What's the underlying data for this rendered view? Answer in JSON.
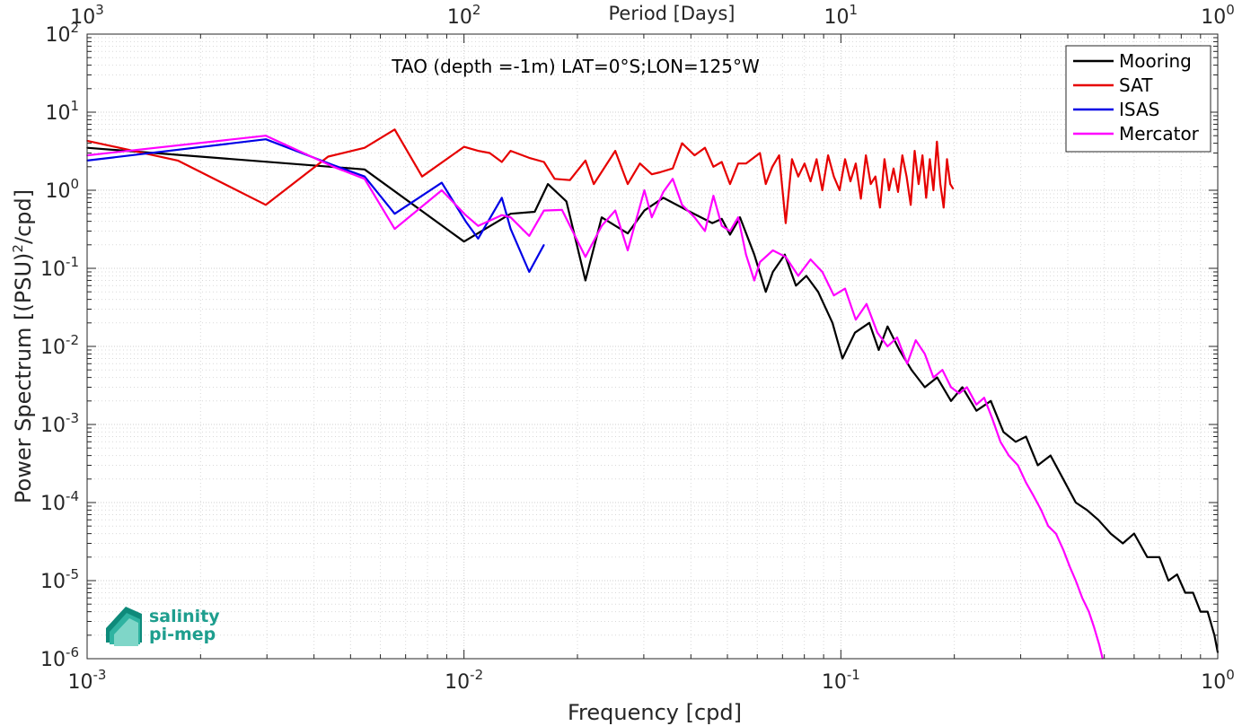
{
  "colors": {
    "mooring": "#000000",
    "sat": "#e60000",
    "isas": "#0000e6",
    "mercator": "#ff00ff",
    "logo_teal": "#1e9e8e"
  },
  "logo": {
    "line1": "salinity",
    "line2": "pi-mep",
    "icon": "salinity-waves-icon"
  },
  "chart_data": {
    "type": "line",
    "title": "TAO (depth =-1m) LAT=0°S;LON=125°W",
    "xlabel": "Frequency [cpd]",
    "ylabel": "Power Spectrum [(PSU)",
    "ylabel_sup": "2",
    "ylabel_suffix": "/cpd]",
    "top_xlabel": "Period [Days]",
    "x_scale": "log",
    "y_scale": "log",
    "xlim": [
      0.001,
      1
    ],
    "ylim": [
      1e-06,
      100
    ],
    "grid": true,
    "legend_position": "top-right",
    "x_ticks": [
      {
        "value": 0.001,
        "base": "10",
        "exp": "-3"
      },
      {
        "value": 0.01,
        "base": "10",
        "exp": "-2"
      },
      {
        "value": 0.1,
        "base": "10",
        "exp": "-1"
      },
      {
        "value": 1,
        "base": "10",
        "exp": "0"
      }
    ],
    "y_ticks": [
      {
        "value": 1e-06,
        "base": "10",
        "exp": "-6"
      },
      {
        "value": 1e-05,
        "base": "10",
        "exp": "-5"
      },
      {
        "value": 0.0001,
        "base": "10",
        "exp": "-4"
      },
      {
        "value": 0.001,
        "base": "10",
        "exp": "-3"
      },
      {
        "value": 0.01,
        "base": "10",
        "exp": "-2"
      },
      {
        "value": 0.1,
        "base": "10",
        "exp": "-1"
      },
      {
        "value": 1,
        "base": "10",
        "exp": "0"
      },
      {
        "value": 10,
        "base": "10",
        "exp": "1"
      },
      {
        "value": 100,
        "base": "10",
        "exp": "2"
      }
    ],
    "top_ticks": [
      {
        "value": 0.001,
        "base": "10",
        "exp": "3"
      },
      {
        "value": 0.01,
        "base": "10",
        "exp": "2"
      },
      {
        "value": 0.1,
        "base": "10",
        "exp": "1"
      },
      {
        "value": 1,
        "base": "10",
        "exp": "0"
      }
    ],
    "series": [
      {
        "name": "Mooring",
        "color": "#000000",
        "points": [
          [
            0.001,
            3.5
          ],
          [
            0.00545,
            1.85
          ],
          [
            0.01,
            0.22
          ],
          [
            0.0133,
            0.5
          ],
          [
            0.0154,
            0.53
          ],
          [
            0.0167,
            1.2
          ],
          [
            0.0187,
            0.72
          ],
          [
            0.021,
            0.07
          ],
          [
            0.0232,
            0.45
          ],
          [
            0.0272,
            0.28
          ],
          [
            0.0301,
            0.55
          ],
          [
            0.0338,
            0.8
          ],
          [
            0.0392,
            0.55
          ],
          [
            0.0456,
            0.38
          ],
          [
            0.0483,
            0.43
          ],
          [
            0.0508,
            0.27
          ],
          [
            0.054,
            0.45
          ],
          [
            0.0589,
            0.15
          ],
          [
            0.0632,
            0.05
          ],
          [
            0.066,
            0.09
          ],
          [
            0.071,
            0.15
          ],
          [
            0.076,
            0.06
          ],
          [
            0.081,
            0.08
          ],
          [
            0.087,
            0.05
          ],
          [
            0.095,
            0.02
          ],
          [
            0.101,
            0.007
          ],
          [
            0.109,
            0.015
          ],
          [
            0.119,
            0.02
          ],
          [
            0.126,
            0.009
          ],
          [
            0.133,
            0.018
          ],
          [
            0.143,
            0.009
          ],
          [
            0.154,
            0.005
          ],
          [
            0.167,
            0.003
          ],
          [
            0.18,
            0.004
          ],
          [
            0.196,
            0.002
          ],
          [
            0.21,
            0.003
          ],
          [
            0.229,
            0.0015
          ],
          [
            0.25,
            0.002
          ],
          [
            0.27,
            0.0008
          ],
          [
            0.291,
            0.0006
          ],
          [
            0.31,
            0.0007
          ],
          [
            0.333,
            0.0003
          ],
          [
            0.36,
            0.0004
          ],
          [
            0.389,
            0.0002
          ],
          [
            0.42,
            0.0001
          ],
          [
            0.45,
            8e-05
          ],
          [
            0.482,
            6e-05
          ],
          [
            0.52,
            4e-05
          ],
          [
            0.56,
            3e-05
          ],
          [
            0.6,
            4e-05
          ],
          [
            0.65,
            2e-05
          ],
          [
            0.7,
            2e-05
          ],
          [
            0.74,
            1e-05
          ],
          [
            0.78,
            1.2e-05
          ],
          [
            0.82,
            7e-06
          ],
          [
            0.86,
            7e-06
          ],
          [
            0.9,
            4e-06
          ],
          [
            0.94,
            4e-06
          ],
          [
            0.98,
            2e-06
          ],
          [
            1,
            1.2e-06
          ]
        ]
      },
      {
        "name": "SAT",
        "color": "#e60000",
        "points": [
          [
            0.001,
            4.3
          ],
          [
            0.00174,
            2.4
          ],
          [
            0.00298,
            0.65
          ],
          [
            0.00436,
            2.7
          ],
          [
            0.00545,
            3.5
          ],
          [
            0.00655,
            6.0
          ],
          [
            0.00774,
            1.5
          ],
          [
            0.01,
            3.6
          ],
          [
            0.0109,
            3.2
          ],
          [
            0.0117,
            3.0
          ],
          [
            0.0126,
            2.3
          ],
          [
            0.0133,
            3.2
          ],
          [
            0.0149,
            2.6
          ],
          [
            0.0163,
            2.3
          ],
          [
            0.0174,
            1.4
          ],
          [
            0.0191,
            1.35
          ],
          [
            0.021,
            2.4
          ],
          [
            0.0221,
            1.2
          ],
          [
            0.0252,
            3.2
          ],
          [
            0.0272,
            1.2
          ],
          [
            0.0293,
            2.2
          ],
          [
            0.0315,
            1.6
          ],
          [
            0.0331,
            1.7
          ],
          [
            0.0358,
            1.9
          ],
          [
            0.0379,
            4.0
          ],
          [
            0.0409,
            2.8
          ],
          [
            0.0436,
            3.5
          ],
          [
            0.0459,
            2.0
          ],
          [
            0.0483,
            2.3
          ],
          [
            0.0508,
            1.2
          ],
          [
            0.0534,
            2.2
          ],
          [
            0.056,
            2.2
          ],
          [
            0.061,
            3.0
          ],
          [
            0.0632,
            1.2
          ],
          [
            0.0658,
            2.0
          ],
          [
            0.0686,
            2.8
          ],
          [
            0.0714,
            0.38
          ],
          [
            0.0742,
            2.5
          ],
          [
            0.0771,
            1.5
          ],
          [
            0.0801,
            2.2
          ],
          [
            0.0831,
            1.3
          ],
          [
            0.0862,
            2.5
          ],
          [
            0.0893,
            1.0
          ],
          [
            0.0925,
            2.8
          ],
          [
            0.0958,
            1.5
          ],
          [
            0.0992,
            1.0
          ],
          [
            0.1026,
            2.5
          ],
          [
            0.106,
            1.3
          ],
          [
            0.1095,
            2.2
          ],
          [
            0.113,
            0.78
          ],
          [
            0.1165,
            2.8
          ],
          [
            0.12,
            1.2
          ],
          [
            0.1235,
            1.5
          ],
          [
            0.127,
            0.6
          ],
          [
            0.1305,
            2.5
          ],
          [
            0.1342,
            1.0
          ],
          [
            0.138,
            1.9
          ],
          [
            0.1418,
            0.95
          ],
          [
            0.1456,
            2.8
          ],
          [
            0.1494,
            1.5
          ],
          [
            0.1532,
            0.65
          ],
          [
            0.157,
            3.2
          ],
          [
            0.1608,
            1.2
          ],
          [
            0.1646,
            2.8
          ],
          [
            0.1684,
            0.8
          ],
          [
            0.1722,
            2.5
          ],
          [
            0.176,
            1.0
          ],
          [
            0.1798,
            4.2
          ],
          [
            0.1836,
            1.2
          ],
          [
            0.1874,
            0.6
          ],
          [
            0.1912,
            2.5
          ],
          [
            0.195,
            1.2
          ],
          [
            0.1985,
            1.05
          ]
        ]
      },
      {
        "name": "ISAS",
        "color": "#0000e6",
        "points": [
          [
            0.001,
            2.4
          ],
          [
            0.00298,
            4.5
          ],
          [
            0.0045,
            2.1
          ],
          [
            0.00545,
            1.5
          ],
          [
            0.00655,
            0.5
          ],
          [
            0.00873,
            1.25
          ],
          [
            0.0101,
            0.4
          ],
          [
            0.0109,
            0.24
          ],
          [
            0.0126,
            0.8
          ],
          [
            0.0133,
            0.32
          ],
          [
            0.0149,
            0.09
          ],
          [
            0.0163,
            0.2
          ]
        ]
      },
      {
        "name": "Mercator",
        "color": "#ff00ff",
        "points": [
          [
            0.001,
            2.8
          ],
          [
            0.00298,
            5.0
          ],
          [
            0.0045,
            2.0
          ],
          [
            0.00545,
            1.4
          ],
          [
            0.00655,
            0.32
          ],
          [
            0.00873,
            1.0
          ],
          [
            0.0101,
            0.48
          ],
          [
            0.0109,
            0.35
          ],
          [
            0.0126,
            0.48
          ],
          [
            0.0133,
            0.45
          ],
          [
            0.0149,
            0.26
          ],
          [
            0.0163,
            0.55
          ],
          [
            0.0182,
            0.56
          ],
          [
            0.021,
            0.14
          ],
          [
            0.0232,
            0.35
          ],
          [
            0.0252,
            0.55
          ],
          [
            0.0272,
            0.17
          ],
          [
            0.0301,
            1.0
          ],
          [
            0.0315,
            0.45
          ],
          [
            0.0338,
            0.95
          ],
          [
            0.0358,
            1.4
          ],
          [
            0.0379,
            0.65
          ],
          [
            0.0409,
            0.45
          ],
          [
            0.0436,
            0.3
          ],
          [
            0.0459,
            0.85
          ],
          [
            0.0483,
            0.35
          ],
          [
            0.0508,
            0.3
          ],
          [
            0.0534,
            0.45
          ],
          [
            0.056,
            0.15
          ],
          [
            0.0589,
            0.07
          ],
          [
            0.061,
            0.12
          ],
          [
            0.066,
            0.17
          ],
          [
            0.0714,
            0.14
          ],
          [
            0.0771,
            0.08
          ],
          [
            0.0831,
            0.13
          ],
          [
            0.0893,
            0.09
          ],
          [
            0.0958,
            0.045
          ],
          [
            0.1026,
            0.055
          ],
          [
            0.1095,
            0.022
          ],
          [
            0.117,
            0.035
          ],
          [
            0.125,
            0.015
          ],
          [
            0.133,
            0.01
          ],
          [
            0.141,
            0.013
          ],
          [
            0.15,
            0.006
          ],
          [
            0.158,
            0.012
          ],
          [
            0.167,
            0.008
          ],
          [
            0.176,
            0.004
          ],
          [
            0.186,
            0.005
          ],
          [
            0.196,
            0.003
          ],
          [
            0.206,
            0.0025
          ],
          [
            0.216,
            0.003
          ],
          [
            0.229,
            0.0018
          ],
          [
            0.24,
            0.0022
          ],
          [
            0.252,
            0.0012
          ],
          [
            0.265,
            0.0006
          ],
          [
            0.279,
            0.0004
          ],
          [
            0.295,
            0.0003
          ],
          [
            0.31,
            0.00018
          ],
          [
            0.325,
            0.00012
          ],
          [
            0.34,
            8e-05
          ],
          [
            0.355,
            5e-05
          ],
          [
            0.372,
            4e-05
          ],
          [
            0.389,
            2.5e-05
          ],
          [
            0.405,
            1.5e-05
          ],
          [
            0.42,
            1e-05
          ],
          [
            0.437,
            6e-06
          ],
          [
            0.455,
            4e-06
          ],
          [
            0.47,
            2.5e-06
          ],
          [
            0.485,
            1.5e-06
          ],
          [
            0.495,
            1e-06
          ]
        ]
      }
    ]
  }
}
